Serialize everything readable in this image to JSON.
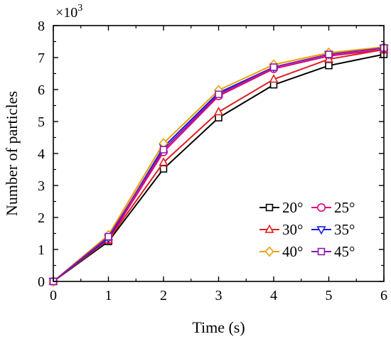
{
  "chart_data": {
    "type": "line",
    "xlabel": "Time (s)",
    "ylabel": "Number of particles",
    "multiplier": {
      "base": "×10",
      "exp": "3"
    },
    "xlim": [
      0,
      6
    ],
    "ylim": [
      0,
      8
    ],
    "xticks": [
      "0",
      "1",
      "2",
      "3",
      "4",
      "5",
      "6"
    ],
    "yticks": [
      "0",
      "1",
      "2",
      "3",
      "4",
      "5",
      "6",
      "7",
      "8"
    ],
    "grid": false,
    "legend_position": "bottom-right",
    "x": [
      0,
      1,
      2,
      3,
      4,
      5,
      6
    ],
    "series": [
      {
        "name": "20°",
        "color": "#000000",
        "marker": "square",
        "values": [
          0,
          1.25,
          3.52,
          5.12,
          6.15,
          6.75,
          7.1
        ]
      },
      {
        "name": "25°",
        "color": "#e0007a",
        "marker": "circle",
        "values": [
          0,
          1.3,
          4.05,
          5.8,
          6.65,
          7.05,
          7.25
        ]
      },
      {
        "name": "30°",
        "color": "#e02020",
        "marker": "triangle-up",
        "values": [
          0,
          1.3,
          3.72,
          5.3,
          6.32,
          6.95,
          7.25
        ]
      },
      {
        "name": "35°",
        "color": "#1a1adc",
        "marker": "triangle-down",
        "values": [
          0,
          1.35,
          4.2,
          5.9,
          6.7,
          7.1,
          7.3
        ]
      },
      {
        "name": "40°",
        "color": "#e8a000",
        "marker": "diamond",
        "values": [
          0,
          1.45,
          4.32,
          5.98,
          6.78,
          7.15,
          7.33
        ]
      },
      {
        "name": "45°",
        "color": "#8a1aa8",
        "marker": "square",
        "values": [
          0,
          1.4,
          4.12,
          5.85,
          6.7,
          7.1,
          7.3
        ]
      }
    ]
  }
}
